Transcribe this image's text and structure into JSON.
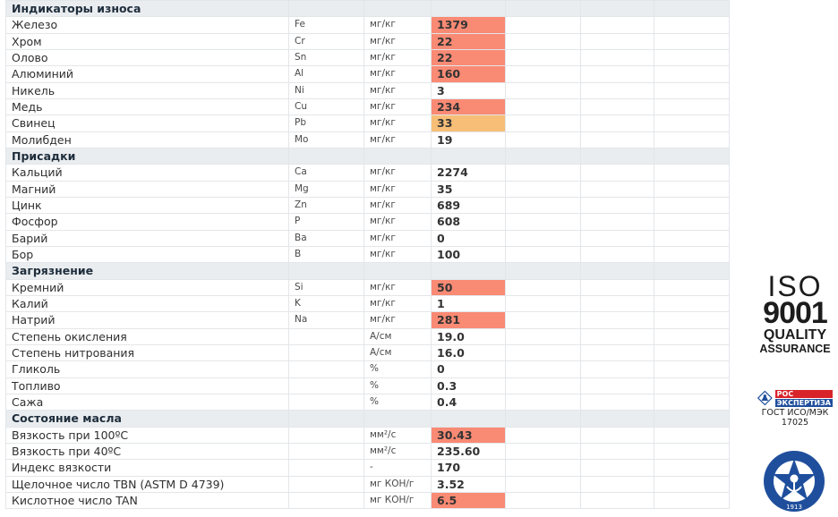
{
  "sections": [
    {
      "title": "Индикаторы износа",
      "rows": [
        {
          "name": "Железо",
          "symbol": "Fe",
          "unit": "мг/кг",
          "value": "1379",
          "hl": "red"
        },
        {
          "name": "Хром",
          "symbol": "Cr",
          "unit": "мг/кг",
          "value": "22",
          "hl": "red"
        },
        {
          "name": "Олово",
          "symbol": "Sn",
          "unit": "мг/кг",
          "value": "22",
          "hl": "red"
        },
        {
          "name": "Алюминий",
          "symbol": "Al",
          "unit": "мг/кг",
          "value": "160",
          "hl": "red"
        },
        {
          "name": "Никель",
          "symbol": "Ni",
          "unit": "мг/кг",
          "value": "3",
          "hl": ""
        },
        {
          "name": "Медь",
          "symbol": "Cu",
          "unit": "мг/кг",
          "value": "234",
          "hl": "red"
        },
        {
          "name": "Свинец",
          "symbol": "Pb",
          "unit": "мг/кг",
          "value": "33",
          "hl": "orange"
        },
        {
          "name": "Молибден",
          "symbol": "Mo",
          "unit": "мг/кг",
          "value": "19",
          "hl": ""
        }
      ]
    },
    {
      "title": "Присадки",
      "rows": [
        {
          "name": "Кальций",
          "symbol": "Ca",
          "unit": "мг/кг",
          "value": "2274",
          "hl": ""
        },
        {
          "name": "Магний",
          "symbol": "Mg",
          "unit": "мг/кг",
          "value": "35",
          "hl": ""
        },
        {
          "name": "Цинк",
          "symbol": "Zn",
          "unit": "мг/кг",
          "value": "689",
          "hl": ""
        },
        {
          "name": "Фосфор",
          "symbol": "P",
          "unit": "мг/кг",
          "value": "608",
          "hl": ""
        },
        {
          "name": "Барий",
          "symbol": "Ba",
          "unit": "мг/кг",
          "value": "0",
          "hl": ""
        },
        {
          "name": "Бор",
          "symbol": "B",
          "unit": "мг/кг",
          "value": "100",
          "hl": ""
        }
      ]
    },
    {
      "title": "Загрязнение",
      "rows": [
        {
          "name": "Кремний",
          "symbol": "Si",
          "unit": "мг/кг",
          "value": "50",
          "hl": "red"
        },
        {
          "name": "Калий",
          "symbol": "K",
          "unit": "мг/кг",
          "value": "1",
          "hl": ""
        },
        {
          "name": "Натрий",
          "symbol": "Na",
          "unit": "мг/кг",
          "value": "281",
          "hl": "red"
        },
        {
          "name": "Степень окисления",
          "symbol": "",
          "unit": "A/см",
          "value": "19.0",
          "hl": ""
        },
        {
          "name": "Степень нитрования",
          "symbol": "",
          "unit": "A/см",
          "value": "16.0",
          "hl": ""
        },
        {
          "name": "Гликоль",
          "symbol": "",
          "unit": "%",
          "value": "0",
          "hl": ""
        },
        {
          "name": "Топливо",
          "symbol": "",
          "unit": "%",
          "value": "0.3",
          "hl": ""
        },
        {
          "name": "Сажа",
          "symbol": "",
          "unit": "%",
          "value": "0.4",
          "hl": ""
        }
      ]
    },
    {
      "title": "Состояние масла",
      "rows": [
        {
          "name": "Вязкость при 100ºC",
          "symbol": "",
          "unit": "мм²/с",
          "value": "30.43",
          "hl": "red"
        },
        {
          "name": "Вязкость при 40ºC",
          "symbol": "",
          "unit": "мм²/с",
          "value": "235.60",
          "hl": ""
        },
        {
          "name": "Индекс вязкости",
          "symbol": "",
          "unit": "-",
          "value": "170",
          "hl": ""
        },
        {
          "name": "Щелочное число TBN (ASTM D 4739)",
          "symbol": "",
          "unit": "мг КОН/г",
          "value": "3.52",
          "hl": ""
        },
        {
          "name": "Кислотное число TAN",
          "symbol": "",
          "unit": "мг КОН/г",
          "value": "6.5",
          "hl": "red"
        }
      ]
    }
  ],
  "colors": {
    "red": "#f98a74",
    "orange": "#f7be77",
    "section_bg": "#eaedf0"
  },
  "badges": {
    "iso": {
      "line1": "ISO",
      "line2": "9001",
      "line3": "QUALITY",
      "line4": "ASSURANCE"
    },
    "ros": {
      "mark": "РОС",
      "name": "ЭКСПЕРТИЗА",
      "caption1": "ГОСТ ИСО/МЭК",
      "caption2": "17025"
    },
    "register": {
      "year": "1913"
    }
  }
}
